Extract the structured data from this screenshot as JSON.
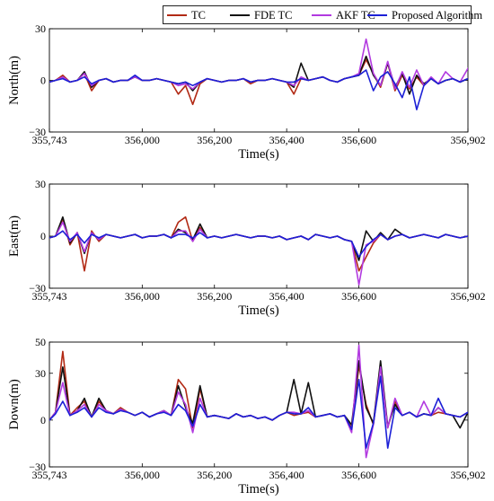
{
  "legend": [
    {
      "label": "TC",
      "color": "#b22a15"
    },
    {
      "label": "FDE TC",
      "color": "#111111"
    },
    {
      "label": "AKF TC",
      "color": "#b23ae0"
    },
    {
      "label": "Proposed Algorithm",
      "color": "#1c20d6"
    }
  ],
  "chart_data": [
    {
      "type": "line",
      "title": "",
      "xlabel": "Time(s)",
      "ylabel": "North(m)",
      "xlim": [
        355743,
        356902
      ],
      "ylim": [
        -30,
        30
      ],
      "xticks": [
        355743,
        356000,
        356200,
        356400,
        356600,
        356902
      ],
      "xtick_labels": [
        "355,743",
        "356,000",
        "356,200",
        "356,400",
        "356,600",
        "356,902"
      ],
      "yticks": [
        -30,
        0,
        30
      ],
      "ytick_labels": [
        "−30",
        "0",
        "30"
      ],
      "grid": false,
      "x": [
        355743,
        355760,
        355780,
        355800,
        355820,
        355840,
        355860,
        355880,
        355900,
        355920,
        355940,
        355960,
        355980,
        356000,
        356020,
        356040,
        356060,
        356080,
        356100,
        356120,
        356140,
        356160,
        356180,
        356200,
        356220,
        356240,
        356260,
        356280,
        356300,
        356320,
        356340,
        356360,
        356380,
        356400,
        356420,
        356440,
        356460,
        356480,
        356500,
        356520,
        356540,
        356560,
        356580,
        356600,
        356620,
        356640,
        356660,
        356680,
        356700,
        356720,
        356740,
        356760,
        356780,
        356800,
        356820,
        356840,
        356860,
        356880,
        356902
      ],
      "series": [
        {
          "name": "TC",
          "color": "#b22a15",
          "values": [
            -1,
            0,
            3,
            -1,
            0,
            4,
            -6,
            0,
            1,
            -1,
            0,
            0,
            2,
            0,
            0,
            1,
            0,
            -1,
            -8,
            -3,
            -14,
            -2,
            1,
            0,
            -1,
            0,
            0,
            1,
            -2,
            0,
            0,
            1,
            0,
            -1,
            -8,
            1,
            0,
            1,
            2,
            0,
            -1,
            1,
            2,
            3,
            12,
            4,
            -4,
            10,
            -6,
            3,
            -5,
            2,
            -3,
            1,
            -2,
            0,
            1,
            -1,
            1
          ]
        },
        {
          "name": "FDE TC",
          "color": "#111111",
          "values": [
            -1,
            0,
            2,
            -1,
            0,
            5,
            -4,
            0,
            1,
            -1,
            0,
            0,
            2,
            0,
            0,
            1,
            0,
            -1,
            -2,
            -1,
            -6,
            -1,
            1,
            0,
            -1,
            0,
            0,
            1,
            -1,
            0,
            0,
            1,
            0,
            -1,
            -4,
            10,
            0,
            1,
            2,
            0,
            -1,
            1,
            2,
            3,
            14,
            3,
            -3,
            10,
            -4,
            4,
            -8,
            3,
            -2,
            1,
            -2,
            0,
            1,
            -1,
            1
          ]
        },
        {
          "name": "AKF TC",
          "color": "#b23ae0",
          "values": [
            -1,
            0,
            2,
            -1,
            0,
            4,
            -3,
            0,
            1,
            -1,
            0,
            0,
            2,
            0,
            0,
            1,
            0,
            -1,
            -3,
            -2,
            -5,
            -1,
            1,
            0,
            -1,
            0,
            0,
            1,
            -1,
            0,
            0,
            1,
            0,
            -1,
            -3,
            2,
            0,
            1,
            2,
            0,
            -1,
            1,
            2,
            4,
            24,
            4,
            -3,
            11,
            -5,
            5,
            -4,
            6,
            -3,
            2,
            -2,
            5,
            1,
            -1,
            7
          ]
        },
        {
          "name": "Proposed Algorithm",
          "color": "#1c20d6",
          "values": [
            -1,
            0,
            1,
            -1,
            0,
            2,
            -2,
            0,
            1,
            -1,
            0,
            0,
            3,
            0,
            0,
            1,
            0,
            -1,
            -2,
            -1,
            -3,
            -1,
            1,
            0,
            -1,
            0,
            0,
            1,
            -1,
            0,
            0,
            1,
            0,
            -1,
            -1,
            1,
            0,
            1,
            2,
            0,
            -1,
            1,
            2,
            3,
            6,
            -6,
            2,
            5,
            -2,
            -10,
            2,
            -17,
            -3,
            1,
            -2,
            0,
            1,
            -1,
            1
          ]
        }
      ]
    },
    {
      "type": "line",
      "title": "",
      "xlabel": "Time(s)",
      "ylabel": "East(m)",
      "xlim": [
        355743,
        356902
      ],
      "ylim": [
        -30,
        30
      ],
      "xticks": [
        355743,
        356000,
        356200,
        356400,
        356600,
        356902
      ],
      "xtick_labels": [
        "355,743",
        "356,000",
        "356,200",
        "356,400",
        "356,600",
        "356,902"
      ],
      "yticks": [
        -30,
        0,
        30
      ],
      "ytick_labels": [
        "−30",
        "0",
        "30"
      ],
      "grid": false,
      "x": [
        355743,
        355760,
        355780,
        355800,
        355820,
        355840,
        355860,
        355880,
        355900,
        355920,
        355940,
        355960,
        355980,
        356000,
        356020,
        356040,
        356060,
        356080,
        356100,
        356120,
        356140,
        356160,
        356180,
        356200,
        356220,
        356240,
        356260,
        356280,
        356300,
        356320,
        356340,
        356360,
        356380,
        356400,
        356420,
        356440,
        356460,
        356480,
        356500,
        356520,
        356540,
        356560,
        356580,
        356600,
        356620,
        356640,
        356660,
        356680,
        356700,
        356720,
        356740,
        356760,
        356780,
        356800,
        356820,
        356840,
        356860,
        356880,
        356902
      ],
      "series": [
        {
          "name": "TC",
          "color": "#b22a15",
          "values": [
            -1,
            0,
            10,
            -5,
            2,
            -20,
            3,
            -3,
            1,
            0,
            -1,
            0,
            1,
            -1,
            0,
            0,
            1,
            -1,
            8,
            11,
            -3,
            5,
            -1,
            0,
            -1,
            0,
            1,
            0,
            -1,
            0,
            0,
            -1,
            0,
            -2,
            -1,
            0,
            -2,
            1,
            0,
            -1,
            0,
            -2,
            -3,
            -20,
            -12,
            -4,
            1,
            -2,
            0,
            1,
            -1,
            0,
            1,
            0,
            -1,
            1,
            0,
            -1,
            0
          ]
        },
        {
          "name": "FDE TC",
          "color": "#111111",
          "values": [
            -1,
            0,
            11,
            -4,
            2,
            -10,
            2,
            -2,
            1,
            0,
            -1,
            0,
            1,
            -1,
            0,
            0,
            1,
            -1,
            4,
            2,
            -2,
            7,
            -1,
            0,
            -1,
            0,
            1,
            0,
            -1,
            0,
            0,
            -1,
            0,
            -2,
            -1,
            0,
            -2,
            1,
            0,
            -1,
            0,
            -2,
            -3,
            -14,
            3,
            -3,
            2,
            -2,
            4,
            1,
            -1,
            0,
            1,
            0,
            -1,
            1,
            0,
            -1,
            0
          ]
        },
        {
          "name": "AKF TC",
          "color": "#b23ae0",
          "values": [
            -1,
            0,
            8,
            -3,
            2,
            -9,
            2,
            -2,
            1,
            0,
            -1,
            0,
            1,
            -1,
            0,
            0,
            1,
            -1,
            3,
            3,
            -3,
            4,
            -1,
            0,
            -1,
            0,
            1,
            0,
            -1,
            0,
            0,
            -1,
            0,
            -2,
            -1,
            0,
            -2,
            1,
            0,
            -1,
            0,
            -2,
            -3,
            -28,
            -5,
            -3,
            1,
            -2,
            0,
            1,
            -1,
            0,
            1,
            0,
            -1,
            1,
            0,
            -1,
            0
          ]
        },
        {
          "name": "Proposed Algorithm",
          "color": "#1c20d6",
          "values": [
            -1,
            0,
            3,
            -2,
            1,
            -4,
            1,
            -1,
            1,
            0,
            -1,
            0,
            1,
            -1,
            0,
            0,
            1,
            -1,
            1,
            1,
            -1,
            2,
            -1,
            0,
            -1,
            0,
            1,
            0,
            -1,
            0,
            0,
            -1,
            0,
            -2,
            -1,
            0,
            -2,
            1,
            0,
            -1,
            0,
            -2,
            -3,
            -12,
            -6,
            -2,
            1,
            -2,
            0,
            1,
            -1,
            0,
            1,
            0,
            -1,
            1,
            0,
            -1,
            0
          ]
        }
      ]
    },
    {
      "type": "line",
      "title": "",
      "xlabel": "Time(s)",
      "ylabel": "Down(m)",
      "xlim": [
        355743,
        356902
      ],
      "ylim": [
        -30,
        50
      ],
      "xticks": [
        355743,
        356000,
        356200,
        356400,
        356600,
        356902
      ],
      "xtick_labels": [
        "355,743",
        "356,000",
        "356,200",
        "356,400",
        "356,600",
        "356,902"
      ],
      "yticks": [
        -30,
        0,
        30,
        50
      ],
      "ytick_labels": [
        "−30",
        "0",
        "30",
        "50"
      ],
      "grid": false,
      "x": [
        355743,
        355760,
        355780,
        355800,
        355820,
        355840,
        355860,
        355880,
        355900,
        355920,
        355940,
        355960,
        355980,
        356000,
        356020,
        356040,
        356060,
        356080,
        356100,
        356120,
        356140,
        356160,
        356180,
        356200,
        356220,
        356240,
        356260,
        356280,
        356300,
        356320,
        356340,
        356360,
        356380,
        356400,
        356420,
        356440,
        356460,
        356480,
        356500,
        356520,
        356540,
        356560,
        356580,
        356600,
        356620,
        356640,
        356660,
        356680,
        356700,
        356720,
        356740,
        356760,
        356780,
        356800,
        356820,
        356840,
        356860,
        356880,
        356902
      ],
      "series": [
        {
          "name": "TC",
          "color": "#b22a15",
          "values": [
            0,
            5,
            44,
            3,
            8,
            12,
            2,
            12,
            6,
            4,
            8,
            5,
            3,
            5,
            2,
            4,
            6,
            3,
            26,
            20,
            -5,
            20,
            2,
            3,
            2,
            1,
            4,
            2,
            3,
            1,
            2,
            0,
            3,
            5,
            3,
            4,
            5,
            2,
            3,
            4,
            2,
            3,
            -5,
            35,
            10,
            -3,
            35,
            -5,
            12,
            3,
            5,
            2,
            4,
            3,
            5,
            4,
            3,
            2,
            5
          ]
        },
        {
          "name": "FDE TC",
          "color": "#111111",
          "values": [
            0,
            5,
            34,
            3,
            6,
            14,
            2,
            14,
            6,
            4,
            7,
            5,
            3,
            5,
            2,
            4,
            6,
            3,
            22,
            8,
            -2,
            22,
            2,
            3,
            2,
            1,
            4,
            2,
            3,
            1,
            2,
            0,
            3,
            5,
            26,
            4,
            24,
            2,
            3,
            4,
            2,
            3,
            -3,
            38,
            8,
            -2,
            38,
            -4,
            10,
            3,
            5,
            2,
            4,
            3,
            8,
            4,
            3,
            -5,
            5
          ]
        },
        {
          "name": "AKF TC",
          "color": "#b23ae0",
          "values": [
            0,
            5,
            24,
            3,
            6,
            10,
            2,
            10,
            6,
            4,
            7,
            5,
            3,
            5,
            2,
            4,
            6,
            3,
            18,
            10,
            -8,
            14,
            2,
            3,
            2,
            1,
            4,
            2,
            3,
            1,
            2,
            0,
            3,
            5,
            5,
            4,
            6,
            2,
            3,
            4,
            2,
            3,
            -8,
            48,
            -24,
            -3,
            34,
            -5,
            14,
            3,
            5,
            2,
            12,
            3,
            8,
            4,
            3,
            2,
            5
          ]
        },
        {
          "name": "Proposed Algorithm",
          "color": "#1c20d6",
          "values": [
            0,
            4,
            12,
            3,
            5,
            8,
            2,
            8,
            5,
            4,
            6,
            5,
            3,
            5,
            2,
            4,
            5,
            3,
            10,
            6,
            -4,
            10,
            2,
            3,
            2,
            1,
            4,
            2,
            3,
            1,
            2,
            0,
            3,
            5,
            4,
            4,
            8,
            2,
            3,
            4,
            2,
            3,
            -6,
            26,
            -18,
            -2,
            28,
            -18,
            8,
            3,
            5,
            2,
            4,
            3,
            14,
            4,
            3,
            2,
            5
          ]
        }
      ]
    }
  ]
}
